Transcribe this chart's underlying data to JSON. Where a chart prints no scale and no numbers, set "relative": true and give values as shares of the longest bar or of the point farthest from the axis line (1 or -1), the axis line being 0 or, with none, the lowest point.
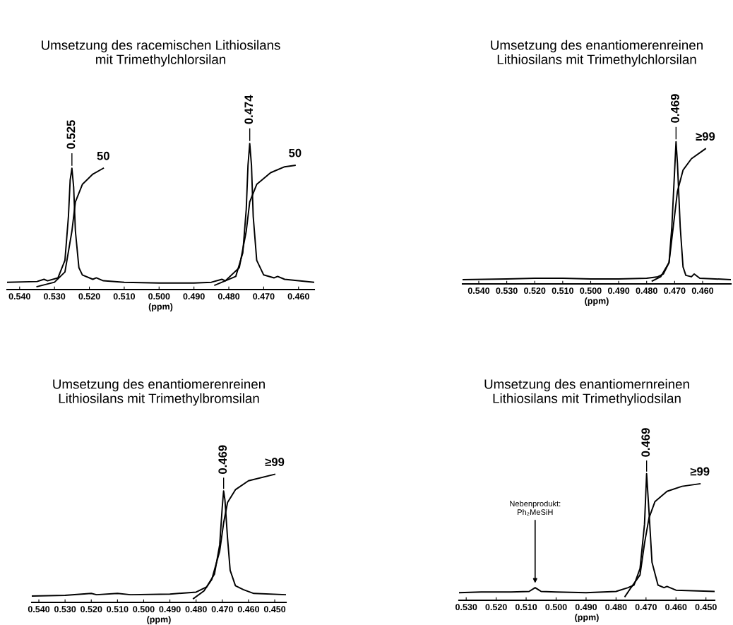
{
  "chart_data": [
    {
      "type": "line",
      "title": "Umsetzung des racemischen Lithiosilans\nmit Trimethylchlorsilan",
      "xlabel": "(ppm)",
      "relative": true,
      "tick_labels": "x",
      "grid": false,
      "legend": false,
      "marker": "none",
      "line_style": "solid",
      "xlim": [
        0.5436,
        0.4555
      ],
      "xticks": [
        {
          "value": 0.54,
          "label": "0.540"
        },
        {
          "value": 0.53,
          "label": "0.530"
        },
        {
          "value": 0.52,
          "label": "0.520"
        },
        {
          "value": 0.51,
          "label": "0.510"
        },
        {
          "value": 0.5,
          "label": "0.500"
        },
        {
          "value": 0.49,
          "label": "0.490"
        },
        {
          "value": 0.48,
          "label": "0.480"
        },
        {
          "value": 0.47,
          "label": "0.470"
        },
        {
          "value": 0.46,
          "label": "0.460"
        }
      ],
      "series": [
        {
          "color": "#000000",
          "x": [
            0.5436,
            0.535,
            0.533,
            0.532,
            0.529,
            0.527,
            0.526,
            0.5255,
            0.525,
            0.5245,
            0.524,
            0.523,
            0.522,
            0.519,
            0.518,
            0.516,
            0.51,
            0.5,
            0.49,
            0.485,
            0.482,
            0.481,
            0.478,
            0.476,
            0.475,
            0.4745,
            0.474,
            0.4735,
            0.473,
            0.472,
            0.47,
            0.467,
            0.466,
            0.464,
            0.4555
          ],
          "values": [
            0.05,
            0.055,
            0.07,
            0.06,
            0.08,
            0.2,
            0.5,
            0.75,
            0.83,
            0.7,
            0.4,
            0.15,
            0.1,
            0.07,
            0.08,
            0.06,
            0.05,
            0.045,
            0.045,
            0.05,
            0.07,
            0.06,
            0.09,
            0.25,
            0.55,
            0.85,
            1.0,
            0.85,
            0.5,
            0.2,
            0.1,
            0.08,
            0.09,
            0.07,
            0.05
          ]
        },
        {
          "color": "#000000",
          "x": [
            0.535,
            0.53,
            0.527,
            0.525,
            0.524,
            0.522,
            0.519,
            0.516,
            0.5,
            0.484,
            0.481,
            0.477,
            0.475,
            0.474,
            0.472,
            0.468,
            0.464,
            0.461
          ],
          "values": [
            0.02,
            0.05,
            0.12,
            0.4,
            0.6,
            0.72,
            0.79,
            0.83,
            null,
            0.03,
            0.06,
            0.15,
            0.4,
            0.6,
            0.72,
            0.8,
            0.84,
            0.85
          ]
        }
      ],
      "annotations": [
        {
          "text": "0.525",
          "x": 0.525,
          "y": 0.83
        },
        {
          "text": "50",
          "x": 0.516,
          "y": 0.83
        },
        {
          "text": "0.474",
          "x": 0.474,
          "y": 1.0
        },
        {
          "text": "50",
          "x": 0.461,
          "y": 0.85
        }
      ]
    },
    {
      "type": "line",
      "title": "Umsetzung des enantiomerenreinen\nLithiosilans mit Trimethylchlorsilan",
      "xlabel": "(ppm)",
      "relative": true,
      "tick_labels": "x",
      "grid": false,
      "legend": false,
      "marker": "none",
      "line_style": "solid",
      "xlim": [
        0.5458,
        0.4499
      ],
      "xticks": [
        {
          "value": 0.54,
          "label": "0.540"
        },
        {
          "value": 0.53,
          "label": "0.530"
        },
        {
          "value": 0.52,
          "label": "0.520"
        },
        {
          "value": 0.51,
          "label": "0.510"
        },
        {
          "value": 0.5,
          "label": "0.500"
        },
        {
          "value": 0.49,
          "label": "0.490"
        },
        {
          "value": 0.48,
          "label": "0.480"
        },
        {
          "value": 0.47,
          "label": "0.470"
        },
        {
          "value": 0.46,
          "label": "0.460"
        }
      ],
      "series": [
        {
          "color": "#000000",
          "x": [
            0.5458,
            0.53,
            0.52,
            0.51,
            0.5,
            0.49,
            0.48,
            0.476,
            0.474,
            0.472,
            0.471,
            0.47,
            0.4695,
            0.469,
            0.468,
            0.467,
            0.466,
            0.464,
            0.463,
            0.461,
            0.4499
          ],
          "values": [
            0.03,
            0.035,
            0.04,
            0.04,
            0.035,
            0.035,
            0.04,
            0.05,
            0.07,
            0.15,
            0.4,
            0.8,
            1.0,
            0.85,
            0.4,
            0.12,
            0.06,
            0.05,
            0.07,
            0.04,
            0.03
          ]
        },
        {
          "color": "#000000",
          "x": [
            0.478,
            0.475,
            0.472,
            0.4705,
            0.469,
            0.467,
            0.464,
            0.459
          ],
          "values": [
            0.02,
            0.05,
            0.15,
            0.4,
            0.65,
            0.8,
            0.88,
            0.95
          ]
        }
      ],
      "annotations": [
        {
          "text": "0.469",
          "x": 0.4695,
          "y": 1.0
        },
        {
          "text": "≥99",
          "x": 0.459,
          "y": 0.95
        }
      ]
    },
    {
      "type": "line",
      "title": "Umsetzung des enantiomerenreinen\nLithiosilans mit Trimethylbromsilan",
      "xlabel": "(ppm)",
      "relative": true,
      "tick_labels": "x",
      "grid": false,
      "legend": false,
      "marker": "none",
      "line_style": "solid",
      "xlim": [
        0.5427,
        0.4457
      ],
      "xticks": [
        {
          "value": 0.54,
          "label": "0.540"
        },
        {
          "value": 0.53,
          "label": "0.530"
        },
        {
          "value": 0.52,
          "label": "0.520"
        },
        {
          "value": 0.51,
          "label": "0.510"
        },
        {
          "value": 0.5,
          "label": "0.500"
        },
        {
          "value": 0.49,
          "label": "0.490"
        },
        {
          "value": 0.48,
          "label": "0.480"
        },
        {
          "value": 0.47,
          "label": "0.470"
        },
        {
          "value": 0.46,
          "label": "0.460"
        },
        {
          "value": 0.45,
          "label": "0.450"
        }
      ],
      "series": [
        {
          "color": "#000000",
          "x": [
            0.5427,
            0.53,
            0.52,
            0.518,
            0.51,
            0.505,
            0.49,
            0.48,
            0.476,
            0.473,
            0.471,
            0.47,
            0.4695,
            0.469,
            0.468,
            0.467,
            0.465,
            0.462,
            0.458,
            0.4457
          ],
          "values": [
            0.05,
            0.055,
            0.07,
            0.06,
            0.07,
            0.06,
            0.065,
            0.08,
            0.12,
            0.22,
            0.45,
            0.75,
            0.87,
            0.8,
            0.5,
            0.25,
            0.13,
            0.1,
            0.07,
            0.06
          ]
        },
        {
          "color": "#000000",
          "x": [
            0.481,
            0.477,
            0.474,
            0.471,
            0.4695,
            0.468,
            0.465,
            0.46,
            0.45
          ],
          "values": [
            0.03,
            0.09,
            0.18,
            0.4,
            0.62,
            0.78,
            0.88,
            0.95,
            1.0
          ]
        }
      ],
      "annotations": [
        {
          "text": "0.469",
          "x": 0.4695,
          "y": 0.87
        },
        {
          "text": "≥99",
          "x": 0.45,
          "y": 1.0
        }
      ]
    },
    {
      "type": "line",
      "title": "Umsetzung des enantiomernreinen\nLithiosilans mit Trimethyliodsilan",
      "xlabel": "(ppm)",
      "relative": true,
      "tick_labels": "x",
      "grid": false,
      "legend": false,
      "marker": "none",
      "line_style": "solid",
      "xlim": [
        0.5324,
        0.4471
      ],
      "xticks": [
        {
          "value": 0.53,
          "label": "0.530"
        },
        {
          "value": 0.52,
          "label": "0.520"
        },
        {
          "value": 0.51,
          "label": "0.510"
        },
        {
          "value": 0.5,
          "label": "0.500"
        },
        {
          "value": 0.49,
          "label": "0.490"
        },
        {
          "value": 0.48,
          "label": "0.480"
        },
        {
          "value": 0.47,
          "label": "0.470"
        },
        {
          "value": 0.46,
          "label": "0.460"
        },
        {
          "value": 0.45,
          "label": "0.450"
        }
      ],
      "series": [
        {
          "color": "#000000",
          "x": [
            0.5324,
            0.525,
            0.515,
            0.509,
            0.507,
            0.505,
            0.5,
            0.49,
            0.48,
            0.476,
            0.474,
            0.472,
            0.4705,
            0.4698,
            0.469,
            0.468,
            0.466,
            0.464,
            0.463,
            0.46,
            0.4471
          ],
          "values": [
            0.06,
            0.065,
            0.065,
            0.07,
            0.1,
            0.07,
            0.065,
            0.06,
            0.07,
            0.1,
            0.12,
            0.25,
            0.6,
            1.0,
            0.7,
            0.3,
            0.12,
            0.1,
            0.11,
            0.08,
            0.07
          ]
        },
        {
          "color": "#000000",
          "x": [
            0.477,
            0.475,
            0.472,
            0.4705,
            0.469,
            0.467,
            0.463,
            0.458,
            0.452
          ],
          "values": [
            0.03,
            0.1,
            0.2,
            0.45,
            0.65,
            0.78,
            0.86,
            0.9,
            0.92
          ]
        }
      ],
      "annotations": [
        {
          "text": "0.469",
          "x": 0.4698,
          "y": 1.0
        },
        {
          "text": "≥99",
          "x": 0.452,
          "y": 0.92
        },
        {
          "text": "Nebenprodukt:\nPh₂MeSiH",
          "x": 0.507,
          "y": 0.1
        }
      ]
    }
  ]
}
